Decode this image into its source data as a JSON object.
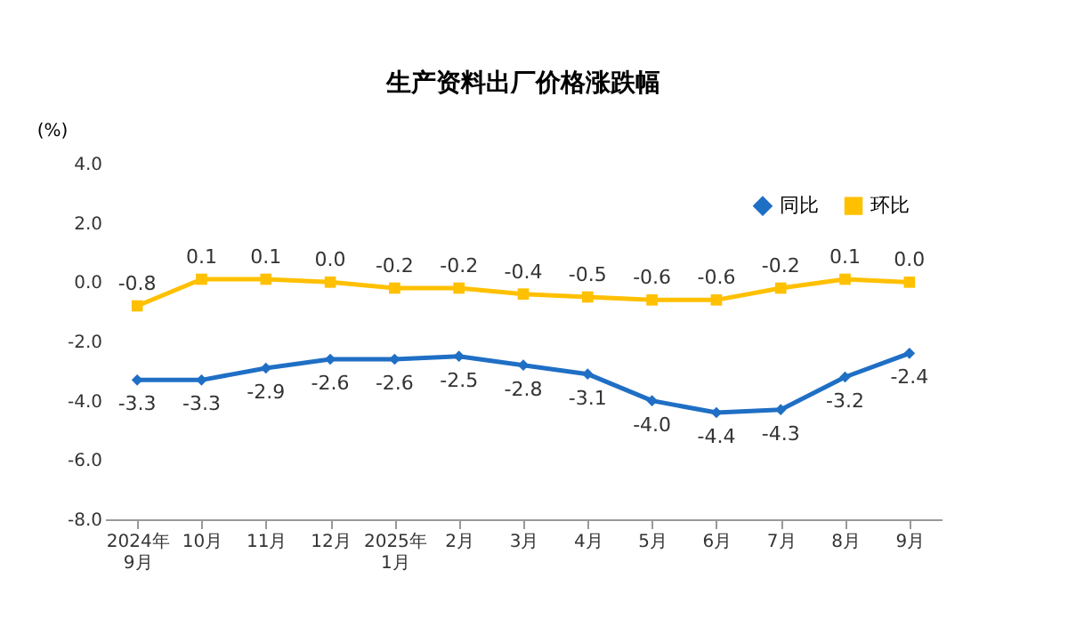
{
  "chart_data": {
    "type": "line",
    "title": "生产资料出厂价格涨跌幅",
    "ylabel": "(%)",
    "categories": [
      "2024年\n9月",
      "10月",
      "11月",
      "12月",
      "2025年\n1月",
      "2月",
      "3月",
      "4月",
      "5月",
      "6月",
      "7月",
      "8月",
      "9月"
    ],
    "series": [
      {
        "name": "同比",
        "color": "#1f6fc5",
        "marker": "diamond",
        "values": [
          -3.3,
          -3.3,
          -2.9,
          -2.6,
          -2.6,
          -2.5,
          -2.8,
          -3.1,
          -4.0,
          -4.4,
          -4.3,
          -3.2,
          -2.4
        ],
        "value_labels": [
          "-3.3",
          "-3.3",
          "-2.9",
          "-2.6",
          "-2.6",
          "-2.5",
          "-2.8",
          "-3.1",
          "-4.0",
          "-4.4",
          "-4.3",
          "-3.2",
          "-2.4"
        ]
      },
      {
        "name": "环比",
        "color": "#ffc000",
        "marker": "square",
        "values": [
          -0.8,
          0.1,
          0.1,
          0.0,
          -0.2,
          -0.2,
          -0.4,
          -0.5,
          -0.6,
          -0.6,
          -0.2,
          0.1,
          0.0
        ],
        "value_labels": [
          "-0.8",
          "0.1",
          "0.1",
          "0.0",
          "-0.2",
          "-0.2",
          "-0.4",
          "-0.5",
          "-0.6",
          "-0.6",
          "-0.2",
          "0.1",
          "0.0"
        ]
      }
    ],
    "ylim": [
      -8,
      4
    ],
    "yticks": [
      {
        "value": 4,
        "label": "4.0"
      },
      {
        "value": 2,
        "label": "2.0"
      },
      {
        "value": 0,
        "label": "0.0"
      },
      {
        "value": -2,
        "label": "-2.0"
      },
      {
        "value": -4,
        "label": "-4.0"
      },
      {
        "value": -6,
        "label": "-6.0"
      },
      {
        "value": -8,
        "label": "-8.0"
      }
    ],
    "grid": false,
    "legend": "top right",
    "line_style": "solid"
  }
}
